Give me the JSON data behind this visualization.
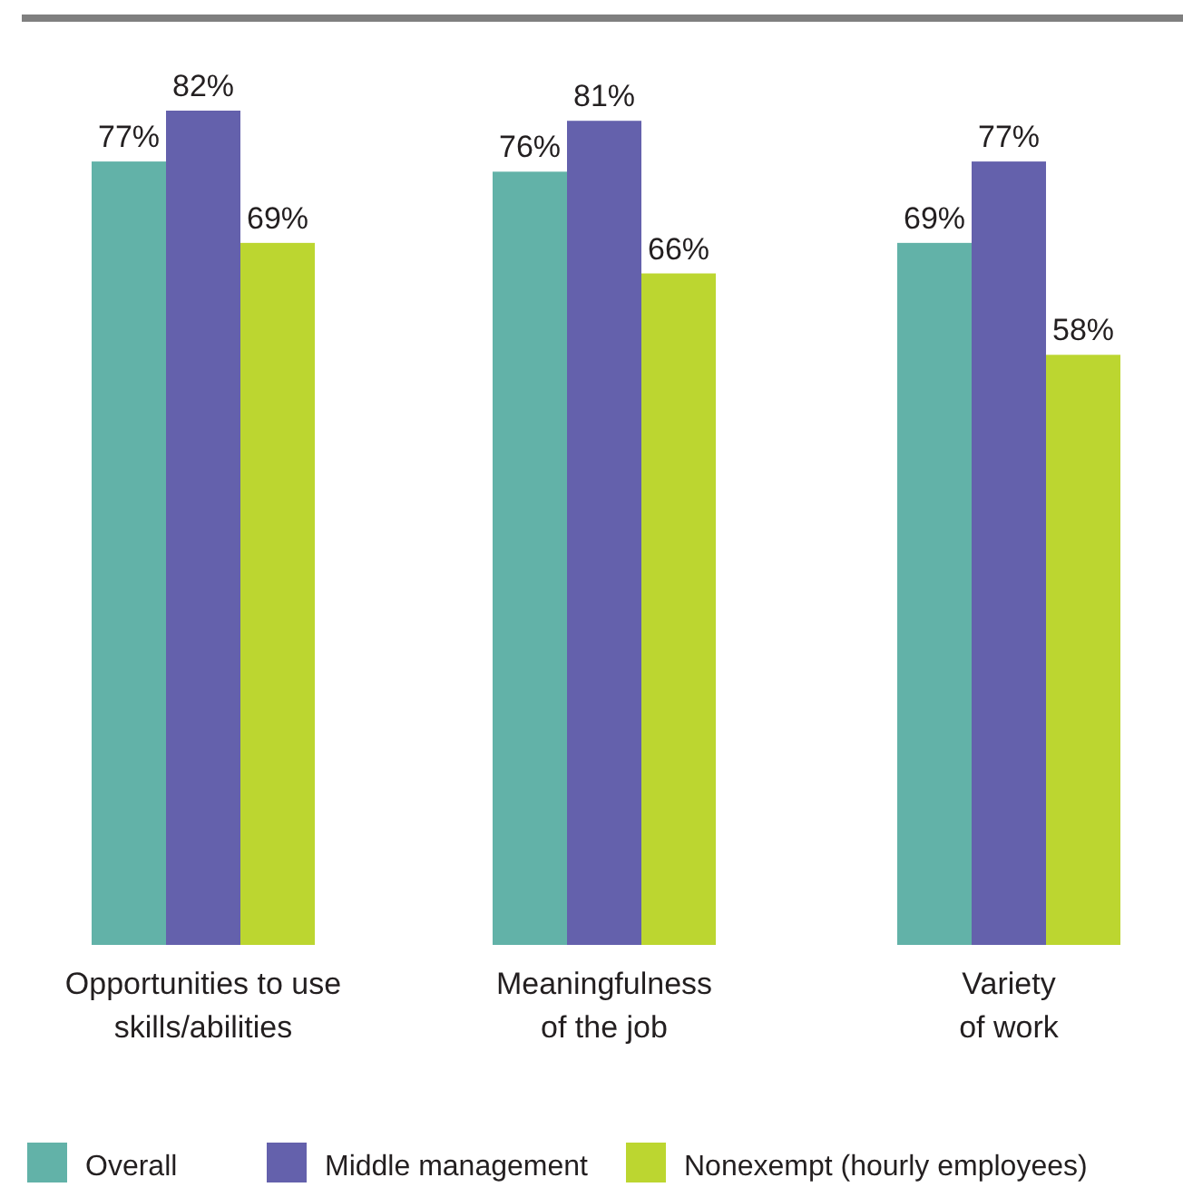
{
  "chart_data": {
    "type": "bar",
    "categories": [
      "Opportunities to use\nskills/abilities",
      "Meaningfulness\nof the job",
      "Variety\nof work"
    ],
    "series": [
      {
        "name": "Overall",
        "color": "#62b2a8",
        "values": [
          77,
          76,
          69
        ],
        "value_labels": [
          "77%",
          "76%",
          "69%"
        ]
      },
      {
        "name": "Middle management",
        "color": "#6461ac",
        "values": [
          82,
          81,
          77
        ],
        "value_labels": [
          "82%",
          "81%",
          "77%"
        ]
      },
      {
        "name": "Nonexempt (hourly employees)",
        "color": "#bcd630",
        "values": [
          69,
          66,
          58
        ],
        "value_labels": [
          "69%",
          "66%",
          "58%"
        ]
      }
    ],
    "legend": "bottom"
  }
}
